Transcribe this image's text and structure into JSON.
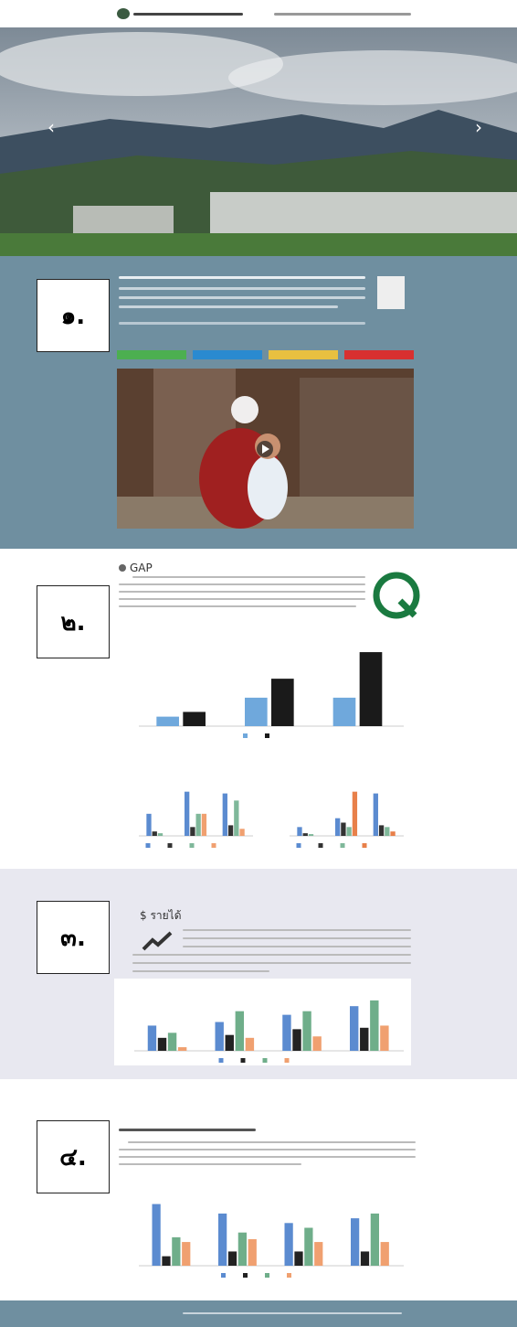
{
  "sections": [
    {
      "number": "๑."
    },
    {
      "number": "๒.",
      "title": "GAP"
    },
    {
      "number": "๓.",
      "icon": "$",
      "title": "รายได้"
    },
    {
      "number": "๔."
    }
  ],
  "charts": [
    {
      "type": "bar",
      "categories": [
        null,
        null,
        null
      ],
      "ylim": [
        0,
        80
      ],
      "series": [
        {
          "color": "#6fa8dc",
          "values": [
            10,
            30,
            30
          ]
        },
        {
          "color": "#1a1a1a",
          "values": [
            15,
            50,
            78
          ]
        }
      ]
    },
    {
      "type": "bar",
      "categories": [
        null,
        null,
        null
      ],
      "ylim": [
        0,
        60
      ],
      "series": [
        {
          "color": "#5b8bd0",
          "values": [
            25,
            50,
            48
          ]
        },
        {
          "color": "#333333",
          "values": [
            5,
            10,
            12
          ]
        },
        {
          "color": "#7fb89a",
          "values": [
            3,
            25,
            40
          ]
        },
        {
          "color": "#f0a070",
          "values": [
            0,
            25,
            8
          ]
        }
      ]
    },
    {
      "type": "bar",
      "categories": [
        null,
        null,
        null
      ],
      "ylim": [
        0,
        60
      ],
      "series": [
        {
          "color": "#5b8bd0",
          "values": [
            10,
            20,
            48
          ]
        },
        {
          "color": "#333333",
          "values": [
            3,
            15,
            12
          ]
        },
        {
          "color": "#7fb89a",
          "values": [
            2,
            10,
            10
          ]
        },
        {
          "color": "#e8804a",
          "values": [
            0,
            50,
            5
          ]
        }
      ]
    },
    {
      "type": "bar",
      "categories": [
        null,
        null,
        null,
        null
      ],
      "ylim": [
        0,
        80
      ],
      "series": [
        {
          "color": "#5b8bd0",
          "values": [
            35,
            40,
            50,
            62
          ]
        },
        {
          "color": "#222222",
          "values": [
            18,
            22,
            30,
            32
          ]
        },
        {
          "color": "#6fae8a",
          "values": [
            25,
            55,
            55,
            70
          ]
        },
        {
          "color": "#f0a070",
          "values": [
            5,
            18,
            20,
            35
          ]
        }
      ]
    },
    {
      "type": "bar",
      "categories": [
        null,
        null,
        null,
        null
      ],
      "ylim": [
        0,
        80
      ],
      "series": [
        {
          "color": "#5b8bd0",
          "values": [
            65,
            55,
            45,
            50
          ]
        },
        {
          "color": "#222222",
          "values": [
            10,
            15,
            15,
            15
          ]
        },
        {
          "color": "#6fae8a",
          "values": [
            30,
            35,
            40,
            55
          ]
        },
        {
          "color": "#f0a070",
          "values": [
            25,
            28,
            25,
            25
          ]
        }
      ]
    }
  ]
}
